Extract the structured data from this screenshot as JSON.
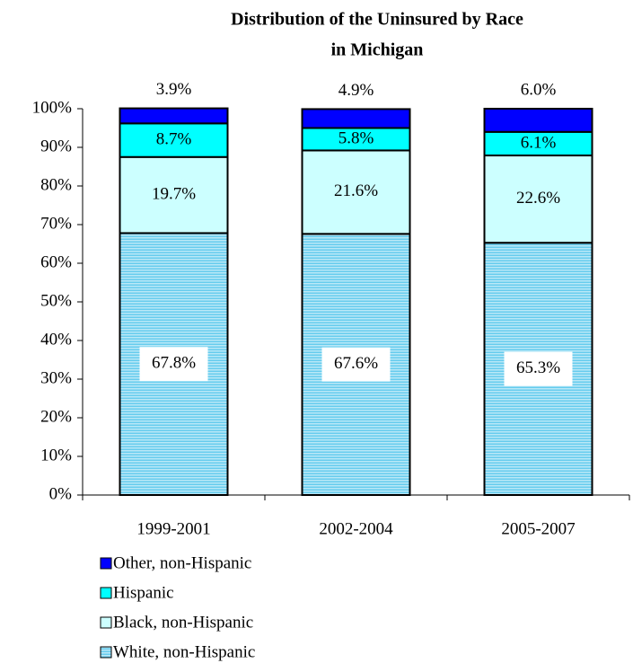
{
  "chart_data": {
    "type": "stacked_bar",
    "title": [
      "Distribution of the Uninsured by Race",
      "in Michigan"
    ],
    "categories": [
      "1999-2001",
      "2002-2004",
      "2005-2007"
    ],
    "series": [
      {
        "name": "White, non-Hispanic",
        "color": "#66ccee",
        "values": [
          67.8,
          67.6,
          65.3
        ],
        "value_labels": [
          "67.8%",
          "67.6%",
          "65.3%"
        ]
      },
      {
        "name": "Black, non-Hispanic",
        "color": "#ccffff",
        "values": [
          19.7,
          21.6,
          22.6
        ],
        "value_labels": [
          "19.7%",
          "21.6%",
          "22.6%"
        ]
      },
      {
        "name": "Hispanic",
        "color": "#00ffff",
        "values": [
          8.7,
          5.8,
          6.1
        ],
        "value_labels": [
          "8.7%",
          "5.8%",
          "6.1%"
        ]
      },
      {
        "name": "Other, non-Hispanic",
        "color": "#0000ff",
        "values": [
          3.9,
          4.9,
          6.0
        ],
        "value_labels": [
          "3.9%",
          "4.9%",
          "6.0%"
        ]
      }
    ],
    "ylim": [
      0,
      100
    ],
    "yticks": [
      {
        "value": 0,
        "label": "0%"
      },
      {
        "value": 10,
        "label": "10%"
      },
      {
        "value": 20,
        "label": "20%"
      },
      {
        "value": 30,
        "label": "30%"
      },
      {
        "value": 40,
        "label": "40%"
      },
      {
        "value": 50,
        "label": "50%"
      },
      {
        "value": 60,
        "label": "60%"
      },
      {
        "value": 70,
        "label": "70%"
      },
      {
        "value": 80,
        "label": "80%"
      },
      {
        "value": 90,
        "label": "90%"
      },
      {
        "value": 100,
        "label": "100%"
      }
    ],
    "legend": "bottom-left"
  }
}
